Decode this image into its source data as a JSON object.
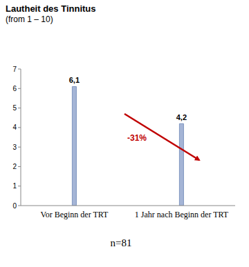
{
  "chart_data": {
    "type": "bar",
    "title": "Lautheit des Tinnitus",
    "subtitle": "(from 1 – 10)",
    "categories": [
      "Vor Beginn der TRT",
      "1 Jahr nach Beginn der TRT"
    ],
    "values": [
      6.1,
      4.2
    ],
    "value_labels": [
      "6,1",
      "4,2"
    ],
    "data_labels": true,
    "color": "#a5b5d6",
    "ylim": [
      0,
      7
    ],
    "yticks": [
      0,
      1,
      2,
      3,
      4,
      5,
      6,
      7
    ],
    "grid": false,
    "annotations": [
      "-31%",
      "n=81"
    ]
  }
}
